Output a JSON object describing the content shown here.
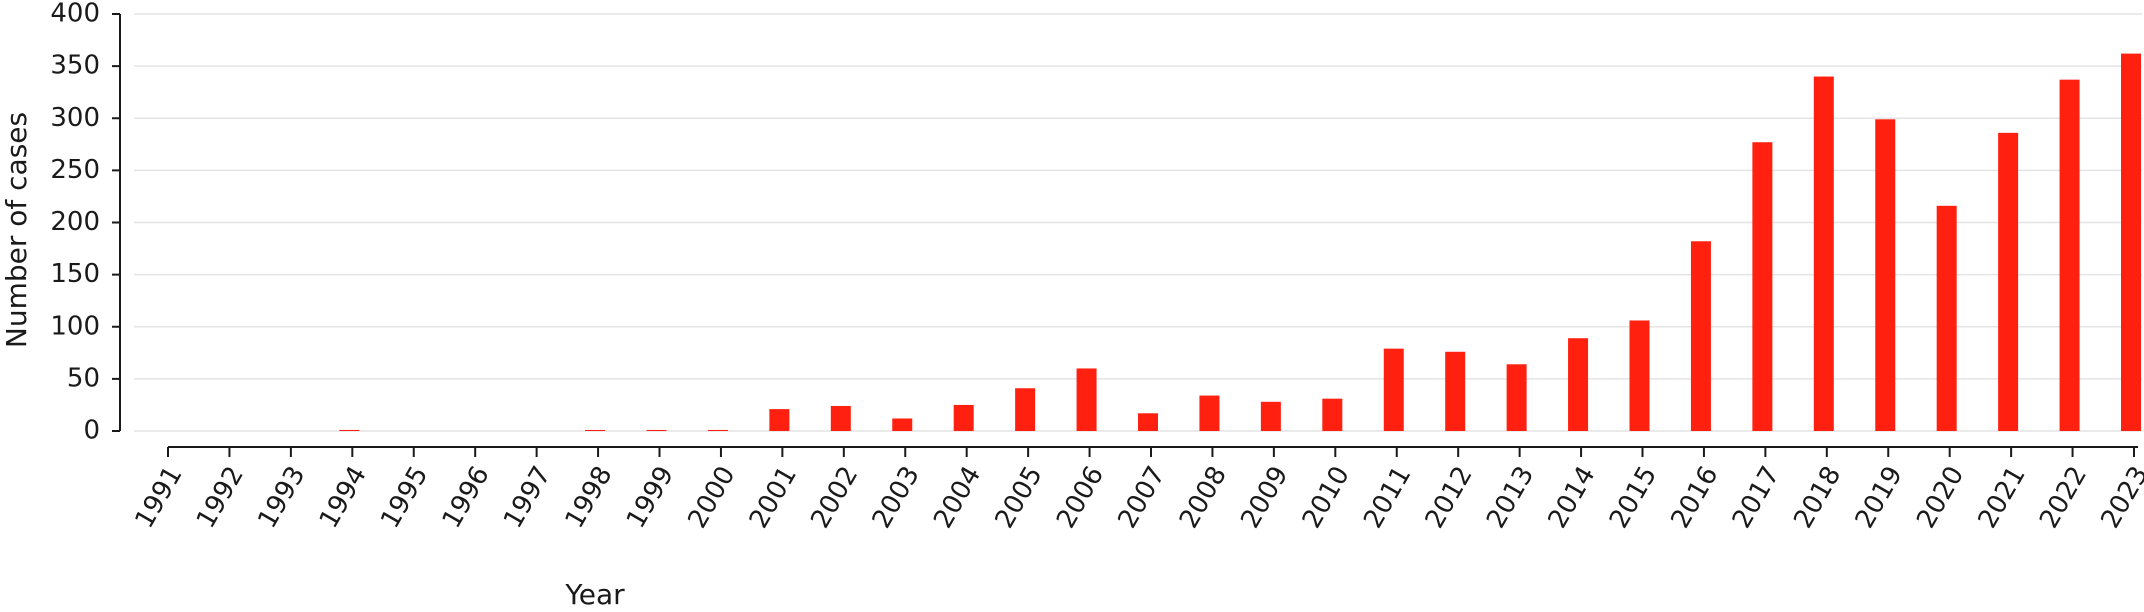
{
  "chart_data": {
    "type": "bar",
    "x_label": "Year",
    "y_label": "Number of cases",
    "categories": [
      "1991",
      "1992",
      "1993",
      "1994",
      "1995",
      "1996",
      "1997",
      "1998",
      "1999",
      "2000",
      "2001",
      "2002",
      "2003",
      "2004",
      "2005",
      "2006",
      "2007",
      "2008",
      "2009",
      "2010",
      "2011",
      "2012",
      "2013",
      "2014",
      "2015",
      "2016",
      "2017",
      "2018",
      "2019",
      "2020",
      "2021",
      "2022",
      "2023"
    ],
    "values": [
      0,
      0,
      0,
      1,
      0,
      0,
      0,
      1,
      1,
      1,
      21,
      24,
      12,
      25,
      41,
      60,
      17,
      34,
      28,
      31,
      79,
      76,
      64,
      89,
      106,
      182,
      277,
      340,
      299,
      216,
      286,
      337,
      362
    ],
    "color": "#ff2010",
    "ylim": [
      0,
      400
    ],
    "yticks": [
      0,
      50,
      100,
      150,
      200,
      250,
      300,
      350,
      400
    ],
    "grid": true
  }
}
